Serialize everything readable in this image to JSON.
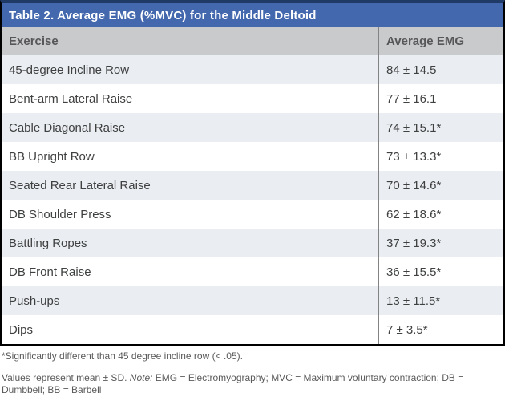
{
  "table": {
    "title": "Table 2. Average EMG (%MVC) for the Middle Deltoid",
    "columns": [
      "Exercise",
      "Average EMG"
    ],
    "rows": [
      {
        "exercise": "45-degree Incline Row",
        "avg_emg": "84 ± 14.5"
      },
      {
        "exercise": "Bent-arm Lateral Raise",
        "avg_emg": "77 ± 16.1"
      },
      {
        "exercise": "Cable Diagonal Raise",
        "avg_emg": "74 ± 15.1*"
      },
      {
        "exercise": "BB Upright Row",
        "avg_emg": "73 ± 13.3*"
      },
      {
        "exercise": "Seated Rear Lateral Raise",
        "avg_emg": "70 ± 14.6*"
      },
      {
        "exercise": "DB Shoulder Press",
        "avg_emg": "62 ± 18.6*"
      },
      {
        "exercise": "Battling Ropes",
        "avg_emg": "37 ± 19.3*"
      },
      {
        "exercise": "DB Front Raise",
        "avg_emg": "36 ± 15.5*"
      },
      {
        "exercise": "Push-ups",
        "avg_emg": "13 ± 11.5*"
      },
      {
        "exercise": "Dips",
        "avg_emg": "7 ± 3.5*"
      }
    ]
  },
  "footnotes": {
    "significance": "*Significantly different than 45 degree incline row (< .05).",
    "values_prefix": "Values represent mean ± SD. ",
    "note_label": "Note:",
    "values_suffix": " EMG = Electromyography; MVC = Maximum voluntary contraction; DB = Dumbbell; BB = Barbell"
  },
  "colors": {
    "title_bar_blue": "#4368ae",
    "top_border_navy": "#203a66",
    "header_bg_gray": "#c9cacc",
    "row_shaded": "#eaedf2",
    "row_plain": "#ffffff",
    "outer_border": "#000000",
    "body_text": "#3f4040",
    "footnote_text": "#5a5a5a"
  },
  "chart_data": {
    "type": "table",
    "title": "Table 2. Average EMG (%MVC) for the Middle Deltoid",
    "columns": [
      "Exercise",
      "Average EMG"
    ],
    "categories": [
      "45-degree Incline Row",
      "Bent-arm Lateral Raise",
      "Cable Diagonal Raise",
      "BB Upright Row",
      "Seated Rear Lateral Raise",
      "DB Shoulder Press",
      "Battling Ropes",
      "DB Front Raise",
      "Push-ups",
      "Dips"
    ],
    "values_mean": [
      84,
      77,
      74,
      73,
      70,
      62,
      37,
      36,
      13,
      7
    ],
    "values_sd": [
      14.5,
      16.1,
      15.1,
      13.3,
      14.6,
      18.6,
      19.3,
      15.5,
      11.5,
      3.5
    ],
    "significant_vs_incline_row": [
      false,
      false,
      true,
      true,
      true,
      true,
      true,
      true,
      true,
      true
    ],
    "units": "%MVC"
  }
}
